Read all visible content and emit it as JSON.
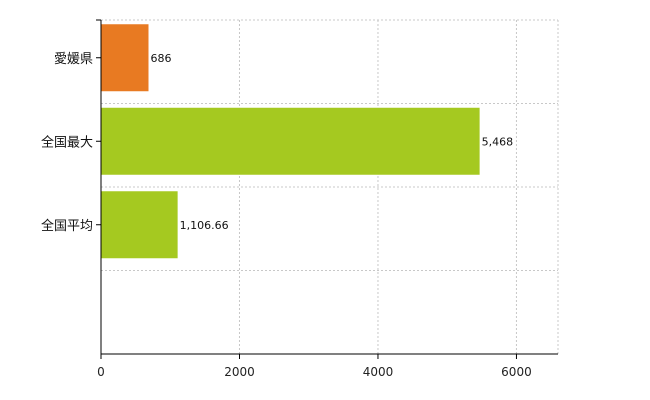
{
  "chart_data": {
    "type": "bar",
    "orientation": "horizontal",
    "categories": [
      "愛媛県",
      "全国最大",
      "全国平均"
    ],
    "values": [
      686,
      5468,
      1106.66
    ],
    "value_labels": [
      "686",
      "5,468",
      "1,106.66"
    ],
    "bar_colors": [
      "#e87a22",
      "#a5c920",
      "#a5c920"
    ],
    "xlim": [
      0,
      6600
    ],
    "xticks": [
      0,
      2000,
      4000,
      6000
    ],
    "xtick_labels": [
      "0",
      "2000",
      "4000",
      "6000"
    ],
    "grid": true,
    "legend": "none",
    "title": "",
    "xlabel": "",
    "ylabel": ""
  }
}
